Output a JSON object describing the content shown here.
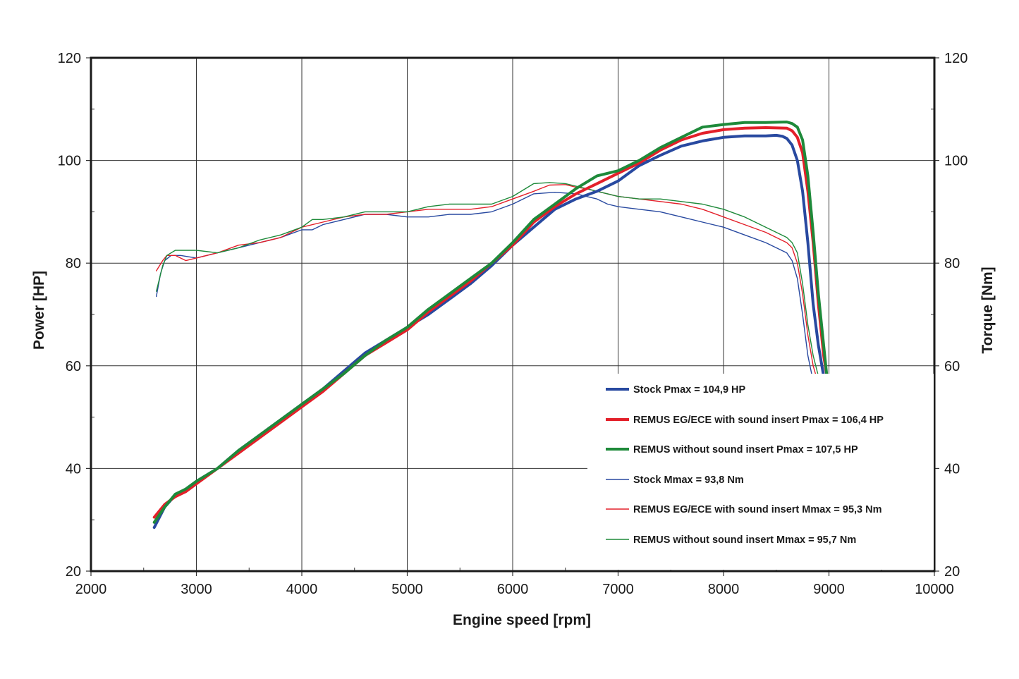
{
  "chart_data": {
    "type": "line",
    "title": "",
    "xlabel": "Engine speed [rpm]",
    "ylabel": "Power [HP]",
    "y2label": "Torque [Nm]",
    "xlim": [
      2000,
      10000
    ],
    "ylim": [
      20,
      120
    ],
    "y2lim": [
      20,
      120
    ],
    "x_ticks": [
      2000,
      3000,
      4000,
      5000,
      6000,
      7000,
      8000,
      9000,
      10000
    ],
    "y_ticks": [
      20,
      40,
      60,
      80,
      100,
      120
    ],
    "grid": true,
    "legend_position": "bottom-right",
    "colors": {
      "stock": "#2849a0",
      "remus_eg": "#e3202a",
      "remus_no_insert": "#1e8a3a"
    },
    "series": [
      {
        "name": "Stock Pmax = 104,9 HP",
        "axis": "left",
        "color": "#2849a0",
        "weight": "thick",
        "x": [
          2600,
          2700,
          2800,
          2900,
          3000,
          3200,
          3400,
          3600,
          3800,
          4000,
          4200,
          4400,
          4600,
          4800,
          5000,
          5200,
          5400,
          5600,
          5800,
          6000,
          6200,
          6400,
          6600,
          6800,
          7000,
          7200,
          7400,
          7600,
          7800,
          8000,
          8200,
          8400,
          8500,
          8560,
          8600,
          8650,
          8700,
          8750,
          8800,
          8850,
          8900,
          8950,
          8980
        ],
        "y": [
          28.5,
          32.5,
          34.8,
          36.0,
          37.5,
          40.0,
          43.5,
          46.5,
          49.5,
          52.5,
          55.5,
          59.0,
          62.5,
          65.0,
          67.5,
          70.0,
          73.0,
          76.0,
          79.5,
          83.5,
          87.0,
          90.5,
          92.5,
          94.0,
          96.0,
          99.0,
          101.0,
          102.8,
          103.8,
          104.5,
          104.8,
          104.8,
          104.9,
          104.7,
          104.3,
          103.0,
          100.0,
          94.0,
          84.0,
          72.0,
          64.0,
          58.0,
          56.0
        ]
      },
      {
        "name": "REMUS EG/ECE with sound insert Pmax = 106,4 HP",
        "axis": "left",
        "color": "#e3202a",
        "weight": "thick",
        "x": [
          2600,
          2700,
          2800,
          2900,
          3000,
          3200,
          3400,
          3600,
          3800,
          4000,
          4200,
          4400,
          4600,
          4800,
          5000,
          5200,
          5400,
          5600,
          5800,
          6000,
          6200,
          6400,
          6600,
          6800,
          7000,
          7200,
          7400,
          7600,
          7800,
          8000,
          8200,
          8400,
          8600,
          8650,
          8700,
          8750,
          8800,
          8850,
          8900,
          8950,
          8980
        ],
        "y": [
          30.5,
          33.0,
          34.5,
          35.5,
          37.0,
          40.0,
          43.0,
          46.0,
          49.0,
          52.0,
          55.0,
          58.5,
          62.0,
          64.5,
          67.0,
          70.5,
          73.5,
          76.5,
          80.0,
          83.5,
          88.0,
          91.0,
          93.5,
          95.5,
          97.5,
          99.5,
          102.0,
          104.0,
          105.3,
          106.0,
          106.3,
          106.4,
          106.3,
          105.8,
          104.5,
          101.5,
          94.0,
          84.0,
          72.0,
          62.0,
          58.0
        ]
      },
      {
        "name": "REMUS without sound insert Pmax = 107,5 HP",
        "axis": "left",
        "color": "#1e8a3a",
        "weight": "thick",
        "x": [
          2600,
          2700,
          2800,
          2900,
          3000,
          3200,
          3400,
          3600,
          3800,
          4000,
          4200,
          4400,
          4600,
          4800,
          5000,
          5200,
          5400,
          5600,
          5800,
          6000,
          6200,
          6400,
          6600,
          6800,
          7000,
          7200,
          7400,
          7600,
          7800,
          8000,
          8200,
          8400,
          8600,
          8650,
          8700,
          8750,
          8800,
          8850,
          8900,
          8950,
          8980
        ],
        "y": [
          29.5,
          32.5,
          35.0,
          36.0,
          37.5,
          40.0,
          43.5,
          46.5,
          49.5,
          52.5,
          55.5,
          58.5,
          62.0,
          65.0,
          67.5,
          71.0,
          74.0,
          77.0,
          80.0,
          84.0,
          88.5,
          91.5,
          94.5,
          97.0,
          98.0,
          100.0,
          102.5,
          104.5,
          106.5,
          107.0,
          107.4,
          107.4,
          107.5,
          107.2,
          106.5,
          104.0,
          97.0,
          86.0,
          74.0,
          64.0,
          58.0
        ]
      },
      {
        "name": "Stock Mmax = 93,8 Nm",
        "axis": "right",
        "color": "#2849a0",
        "weight": "thin",
        "x": [
          2620,
          2660,
          2700,
          2760,
          2850,
          3000,
          3200,
          3400,
          3600,
          3800,
          4000,
          4100,
          4200,
          4400,
          4600,
          4800,
          5000,
          5200,
          5400,
          5600,
          5800,
          6000,
          6200,
          6400,
          6600,
          6800,
          6900,
          7000,
          7200,
          7400,
          7600,
          7800,
          8000,
          8200,
          8400,
          8600,
          8650,
          8700,
          8750,
          8800,
          8850
        ],
        "y": [
          73.5,
          78.0,
          80.5,
          81.5,
          81.5,
          81.0,
          82.0,
          83.0,
          84.0,
          85.0,
          86.5,
          86.5,
          87.5,
          88.5,
          89.5,
          89.5,
          89.0,
          89.0,
          89.5,
          89.5,
          90.0,
          91.5,
          93.5,
          93.8,
          93.5,
          92.5,
          91.5,
          91.0,
          90.5,
          90.0,
          89.0,
          88.0,
          87.0,
          85.5,
          84.0,
          82.0,
          80.5,
          77.0,
          70.0,
          62.0,
          57.0
        ]
      },
      {
        "name": "REMUS EG/ECE with sound insert Mmax = 95,3 Nm",
        "axis": "right",
        "color": "#e3202a",
        "weight": "thin",
        "x": [
          2620,
          2680,
          2720,
          2800,
          2900,
          3000,
          3200,
          3400,
          3600,
          3800,
          4000,
          4200,
          4400,
          4600,
          4800,
          5000,
          5200,
          5400,
          5600,
          5800,
          6000,
          6200,
          6350,
          6500,
          6600,
          6700,
          6800,
          7000,
          7200,
          7400,
          7600,
          7800,
          8000,
          8200,
          8400,
          8600,
          8650,
          8700,
          8750,
          8800,
          8850,
          8900
        ],
        "y": [
          78.5,
          80.5,
          81.5,
          81.5,
          80.5,
          81.0,
          82.0,
          83.5,
          84.0,
          85.0,
          87.0,
          88.0,
          89.0,
          89.5,
          89.5,
          90.0,
          90.5,
          90.5,
          90.5,
          91.0,
          92.5,
          94.0,
          95.2,
          95.3,
          94.8,
          94.5,
          94.0,
          93.0,
          92.5,
          92.0,
          91.5,
          90.5,
          89.0,
          87.5,
          86.0,
          84.0,
          83.0,
          80.0,
          74.0,
          66.0,
          60.0,
          56.5
        ]
      },
      {
        "name": "REMUS without sound insert Mmax = 95,7 Nm",
        "axis": "right",
        "color": "#1e8a3a",
        "weight": "thin",
        "x": [
          2620,
          2680,
          2720,
          2800,
          2900,
          3000,
          3200,
          3400,
          3600,
          3800,
          4000,
          4100,
          4200,
          4400,
          4600,
          4800,
          5000,
          5200,
          5400,
          5600,
          5800,
          6000,
          6200,
          6350,
          6500,
          6600,
          6700,
          6800,
          7000,
          7200,
          7400,
          7600,
          7800,
          8000,
          8200,
          8400,
          8600,
          8650,
          8700,
          8750,
          8800,
          8850,
          8900,
          8950
        ],
        "y": [
          74.5,
          79.5,
          81.5,
          82.5,
          82.5,
          82.5,
          82.0,
          83.0,
          84.5,
          85.5,
          87.0,
          88.5,
          88.5,
          89.0,
          90.0,
          90.0,
          90.0,
          91.0,
          91.5,
          91.5,
          91.5,
          93.0,
          95.5,
          95.7,
          95.5,
          95.0,
          94.5,
          94.0,
          93.0,
          92.5,
          92.5,
          92.0,
          91.5,
          90.5,
          89.0,
          87.0,
          85.0,
          84.0,
          82.0,
          76.0,
          68.0,
          62.0,
          58.0,
          56.0
        ]
      }
    ]
  }
}
